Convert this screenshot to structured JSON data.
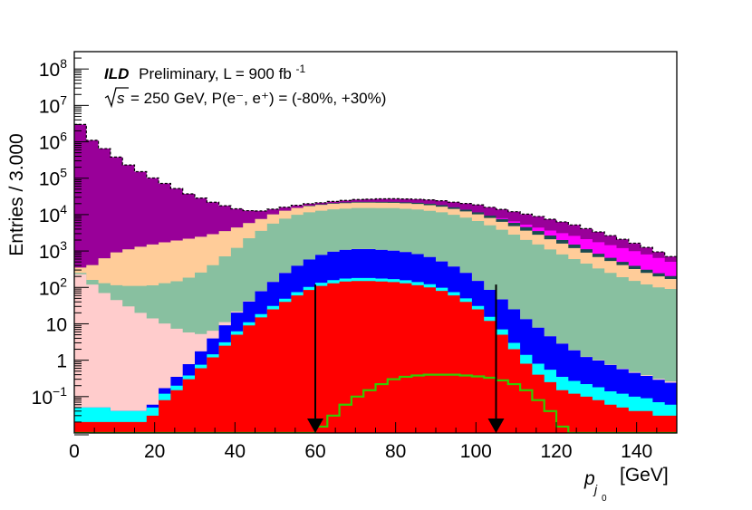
{
  "chart_data": {
    "type": "area",
    "title": "",
    "header": {
      "brand": "ILD",
      "line1_rest": "Preliminary, L = 900 fb",
      "line1_exp": "-1",
      "line2": "= 250 GeV, P(e⁻, e⁺) = (-80%, +30%)",
      "sqrt_label": "s"
    },
    "xlabel": {
      "main": "p",
      "sub": "j",
      "subsub": "0",
      "unit": "[GeV]"
    },
    "ylabel": "Entries / 3.000",
    "xlim": [
      0,
      150
    ],
    "ylim": [
      0.01,
      300000000
    ],
    "yscale": "log",
    "bin_width": 3,
    "x_ticks": [
      0,
      20,
      40,
      60,
      80,
      100,
      120,
      140
    ],
    "x_tick_labels": [
      "0",
      "20",
      "40",
      "60",
      "80",
      "100",
      "120",
      "140"
    ],
    "y_tick_labels": [
      {
        "value": 0.1,
        "base": "10",
        "exp": "−1"
      },
      {
        "value": 1,
        "base": "1",
        "exp": ""
      },
      {
        "value": 10,
        "base": "10",
        "exp": ""
      },
      {
        "value": 100,
        "base": "10",
        "exp": "2"
      },
      {
        "value": 1000,
        "base": "10",
        "exp": "3"
      },
      {
        "value": 10000,
        "base": "10",
        "exp": "4"
      },
      {
        "value": 100000,
        "base": "10",
        "exp": "5"
      },
      {
        "value": 1000000,
        "base": "10",
        "exp": "6"
      },
      {
        "value": 10000000,
        "base": "10",
        "exp": "7"
      },
      {
        "value": 100000000,
        "base": "10",
        "exp": "8"
      }
    ],
    "cut_arrows": [
      60,
      105
    ],
    "cut_arrow_top": 120,
    "stack": [
      {
        "name": "red",
        "color": "#ff0000",
        "values": [
          0.02,
          0.02,
          0.02,
          0.02,
          0.02,
          0.02,
          0.03,
          0.08,
          0.15,
          0.3,
          0.6,
          1.2,
          2.5,
          5,
          9,
          15,
          25,
          40,
          60,
          85,
          110,
          130,
          145,
          150,
          150,
          145,
          140,
          130,
          115,
          100,
          80,
          60,
          40,
          25,
          12,
          5,
          2,
          0.8,
          0.4,
          0.25,
          0.15,
          0.12,
          0.1,
          0.08,
          0.06,
          0.05,
          0.04,
          0.04,
          0.03,
          0.03
        ]
      },
      {
        "name": "cyan",
        "color": "#00ffff",
        "values": [
          0.03,
          0.03,
          0.03,
          0.02,
          0.02,
          0.02,
          0.02,
          0.04,
          0.05,
          0.08,
          0.15,
          0.25,
          0.6,
          1.2,
          2,
          3.5,
          6,
          9,
          14,
          18,
          24,
          28,
          30,
          31,
          31,
          30,
          29,
          27,
          25,
          22,
          18,
          14,
          10,
          6,
          3.5,
          2,
          1,
          0.6,
          0.4,
          0.3,
          0.2,
          0.15,
          0.12,
          0.1,
          0.08,
          0.07,
          0.06,
          0.05,
          0.04,
          0.03
        ]
      },
      {
        "name": "blue",
        "color": "#0000ff",
        "values": [
          0,
          0,
          0,
          0,
          0,
          0,
          0.01,
          0.05,
          0.15,
          0.4,
          1,
          2.5,
          6,
          14,
          30,
          60,
          110,
          200,
          320,
          480,
          650,
          800,
          900,
          950,
          950,
          900,
          850,
          780,
          680,
          560,
          420,
          300,
          200,
          120,
          70,
          40,
          22,
          12,
          7,
          4,
          2.5,
          1.6,
          1,
          0.8,
          0.6,
          0.45,
          0.35,
          0.28,
          0.22,
          0.18
        ]
      },
      {
        "name": "pink",
        "color": "#ffcccc",
        "values": [
          230,
          120,
          70,
          45,
          30,
          20,
          14,
          10,
          7,
          5,
          3.5,
          2.5,
          2,
          1.5,
          1.2,
          1,
          0.8,
          0.6,
          0.5,
          0.4,
          0.3,
          0.25,
          0.2,
          0.15,
          0.12,
          0.1,
          0.08,
          0.07,
          0.06,
          0.05,
          0.04,
          0.04,
          0.03,
          0.03,
          0.03,
          0.03,
          0.02,
          0.02,
          0.02,
          0.02,
          0.02,
          0.02,
          0.02,
          0.02,
          0.02,
          0.02,
          0.02,
          0.02,
          0.02,
          0.02
        ]
      },
      {
        "name": "green",
        "color": "#88c0a0",
        "values": [
          20,
          40,
          60,
          70,
          80,
          90,
          100,
          120,
          140,
          180,
          250,
          400,
          700,
          1200,
          2200,
          3500,
          5500,
          7500,
          9500,
          11000,
          12000,
          13000,
          13500,
          14000,
          14000,
          14000,
          14000,
          13500,
          13000,
          12000,
          11000,
          9500,
          8000,
          6500,
          5000,
          3800,
          2800,
          2000,
          1500,
          1100,
          800,
          600,
          450,
          330,
          250,
          190,
          150,
          120,
          100,
          90
        ]
      },
      {
        "name": "peach",
        "color": "#ffcc99",
        "values": [
          100,
          250,
          500,
          800,
          1000,
          1200,
          1400,
          1600,
          1800,
          2000,
          2200,
          2500,
          2800,
          3200,
          3600,
          4000,
          4500,
          5000,
          5400,
          5600,
          5800,
          6000,
          6100,
          6200,
          6200,
          6200,
          6100,
          6000,
          5800,
          5500,
          5000,
          4500,
          4000,
          3500,
          3000,
          2500,
          2000,
          1600,
          1300,
          1000,
          800,
          600,
          450,
          350,
          280,
          220,
          170,
          130,
          100,
          80
        ]
      },
      {
        "name": "dark-teal",
        "color": "#1a4a50",
        "values": [
          0,
          0,
          0,
          0,
          0,
          0,
          0,
          0,
          0,
          0,
          0,
          0,
          0,
          0,
          0,
          0,
          0,
          0,
          0,
          500,
          600,
          800,
          1000,
          1100,
          1200,
          1300,
          1400,
          1500,
          1600,
          1700,
          1700,
          1600,
          1500,
          1400,
          1300,
          1200,
          1100,
          900,
          700,
          550,
          400,
          300,
          220,
          160,
          120,
          90,
          70,
          55,
          45,
          35
        ]
      },
      {
        "name": "magenta",
        "color": "#ff00ff",
        "values": [
          0,
          0,
          0,
          0,
          0,
          0,
          0,
          0,
          0,
          0,
          0,
          0,
          0,
          0,
          0,
          0,
          0,
          0,
          0,
          0,
          0,
          0,
          0,
          0,
          0,
          0,
          0,
          0,
          0,
          0,
          0,
          0,
          0,
          0,
          0,
          400,
          600,
          800,
          900,
          1000,
          1100,
          1100,
          1000,
          900,
          800,
          700,
          600,
          500,
          400,
          300
        ]
      },
      {
        "name": "purple",
        "color": "#990099",
        "values": [
          3000000,
          1100000,
          650000,
          380000,
          230000,
          150000,
          100000,
          70000,
          50000,
          35000,
          26000,
          19000,
          14000,
          10000,
          7000,
          5000,
          4000,
          3200,
          2700,
          2200,
          2000,
          2200,
          2800,
          3500,
          4000,
          4500,
          4800,
          5000,
          5200,
          5500,
          5800,
          6000,
          6500,
          7000,
          6500,
          6000,
          5500,
          5000,
          4500,
          3800,
          3200,
          2600,
          2000,
          1600,
          1200,
          900,
          650,
          450,
          300,
          200
        ]
      }
    ],
    "signal_line": {
      "name": "signal",
      "color": "#33cc00",
      "values": [
        0,
        0,
        0,
        0,
        0,
        0,
        0,
        0,
        0,
        0,
        0,
        0,
        0,
        0,
        0,
        0,
        0,
        0,
        0,
        0,
        0.015,
        0.03,
        0.06,
        0.1,
        0.15,
        0.22,
        0.3,
        0.35,
        0.38,
        0.4,
        0.4,
        0.4,
        0.38,
        0.36,
        0.33,
        0.28,
        0.22,
        0.15,
        0.08,
        0.04,
        0.015,
        0,
        0,
        0,
        0,
        0,
        0,
        0,
        0,
        0
      ]
    }
  }
}
